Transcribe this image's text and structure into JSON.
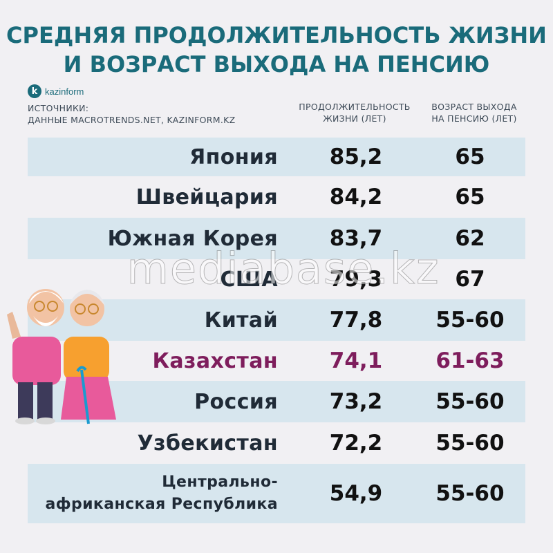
{
  "title_line1": "СРЕДНЯЯ ПРОДОЛЖИТЕЛЬНОСТЬ ЖИЗНИ",
  "title_line2": "И ВОЗРАСТ ВЫХОДА НА ПЕНСИЮ",
  "logo": {
    "mark": "k",
    "text": "kazinform"
  },
  "sources_line1": "ИСТОЧНИКИ:",
  "sources_line2": "ДАННЫЕ MACROTRENDS.NET, KAZINFORM.KZ",
  "col_life_line1": "ПРОДОЛЖИТЕЛЬНОСТЬ",
  "col_life_line2": "ЖИЗНИ (ЛЕТ)",
  "col_ret_line1": "ВОЗРАСТ ВЫХОДА",
  "col_ret_line2": "НА ПЕНСИЮ (ЛЕТ)",
  "watermark": "mediabase.kz",
  "colors": {
    "title": "#1a6b7a",
    "band": "#d7e6ee",
    "highlight": "#7e1d5c",
    "text": "#202b37"
  },
  "chart_data": {
    "type": "table",
    "columns": [
      "",
      "ПРОДОЛЖИТЕЛЬНОСТЬ ЖИЗНИ (ЛЕТ)",
      "ВОЗРАСТ ВЫХОДА НА ПЕНСИЮ (ЛЕТ)"
    ],
    "rows": [
      {
        "country": "Япония",
        "life": "85,2",
        "retirement": "65",
        "banded": true
      },
      {
        "country": "Швейцария",
        "life": "84,2",
        "retirement": "65",
        "banded": false
      },
      {
        "country": "Южная Корея",
        "life": "83,7",
        "retirement": "62",
        "banded": true
      },
      {
        "country": "США",
        "life": "79,3",
        "retirement": "67",
        "banded": false
      },
      {
        "country": "Китай",
        "life": "77,8",
        "retirement": "55-60",
        "banded": true
      },
      {
        "country": "Казахстан",
        "life": "74,1",
        "retirement": "61-63",
        "banded": false,
        "highlight": true
      },
      {
        "country": "Россия",
        "life": "73,2",
        "retirement": "55-60",
        "banded": true
      },
      {
        "country": "Узбекистан",
        "life": "72,2",
        "retirement": "55-60",
        "banded": false
      },
      {
        "country": "Центрально-\nафриканская Республика",
        "life": "54,9",
        "retirement": "55-60",
        "banded": true,
        "small": true
      }
    ]
  }
}
